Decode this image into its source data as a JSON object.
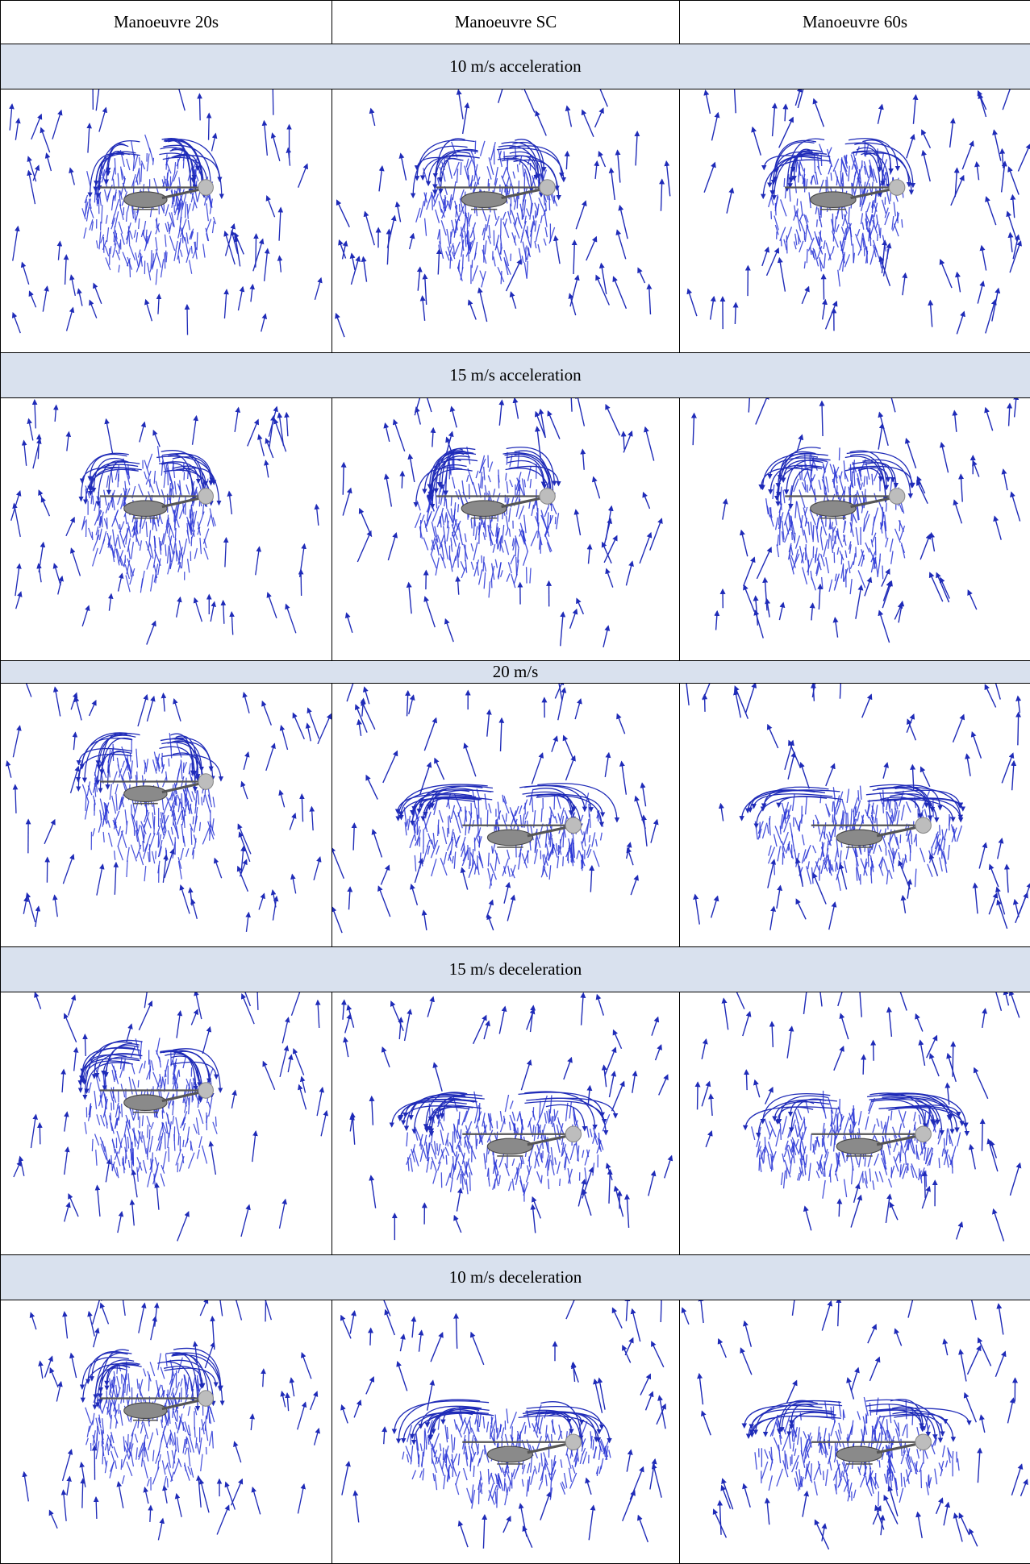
{
  "columns": [
    "Manoeuvre 20s",
    "Manoeuvre SC",
    "Manoeuvre 60s"
  ],
  "rows": [
    {
      "label": "10 m/s acceleration",
      "kinds": [
        "narrow",
        "narrow",
        "narrow"
      ]
    },
    {
      "label": "15 m/s acceleration",
      "kinds": [
        "narrow",
        "narrow",
        "narrow"
      ]
    },
    {
      "label": "20 m/s",
      "kinds": [
        "narrow",
        "wide",
        "wide"
      ]
    },
    {
      "label": "15 m/s deceleration",
      "kinds": [
        "narrow",
        "wide",
        "wide"
      ]
    },
    {
      "label": "10 m/s deceleration",
      "kinds": [
        "narrow",
        "wide",
        "wide"
      ]
    }
  ],
  "colors": {
    "vector": "#1f2bb8",
    "vector_dense": "#2a36d6",
    "band": "#d9e1ee",
    "helicopter": "#8a8a8a"
  }
}
